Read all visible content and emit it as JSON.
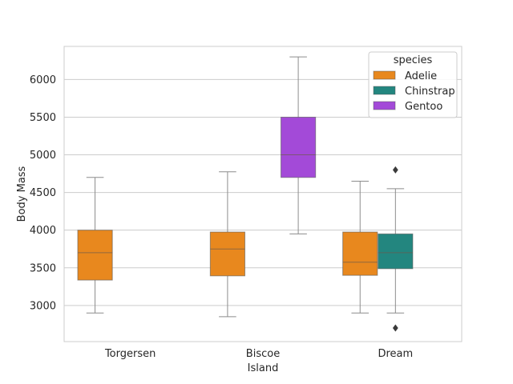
{
  "chart_data": {
    "type": "box",
    "xlabel": "Island",
    "ylabel": "Body Mass",
    "categories": [
      "Torgersen",
      "Biscoe",
      "Dream"
    ],
    "ylim": [
      2520,
      6440
    ],
    "yticks": [
      3000,
      3500,
      4000,
      4500,
      5000,
      5500,
      6000
    ],
    "grid": true,
    "legend": {
      "title": "species",
      "position": "top-right",
      "entries": [
        "Adelie",
        "Chinstrap",
        "Gentoo"
      ]
    },
    "series": [
      {
        "name": "Adelie",
        "color": "#e8881e",
        "boxes": [
          {
            "category": "Torgersen",
            "whisker_low": 2900,
            "q1": 3337,
            "median": 3700,
            "q3": 4000,
            "whisker_high": 4700,
            "outliers": []
          },
          {
            "category": "Biscoe",
            "whisker_low": 2850,
            "q1": 3393,
            "median": 3750,
            "q3": 3975,
            "whisker_high": 4775,
            "outliers": []
          },
          {
            "category": "Dream",
            "whisker_low": 2900,
            "q1": 3400,
            "median": 3575,
            "q3": 3975,
            "whisker_high": 4650,
            "outliers": []
          }
        ]
      },
      {
        "name": "Chinstrap",
        "color": "#23867f",
        "boxes": [
          {
            "category": "Dream",
            "whisker_low": 2900,
            "q1": 3488,
            "median": 3700,
            "q3": 3950,
            "whisker_high": 4550,
            "outliers": [
              2700,
              4800
            ]
          }
        ]
      },
      {
        "name": "Gentoo",
        "color": "#a34ad8",
        "boxes": [
          {
            "category": "Biscoe",
            "whisker_low": 3950,
            "q1": 4700,
            "median": 5000,
            "q3": 5500,
            "whisker_high": 6300,
            "outliers": []
          }
        ]
      }
    ]
  }
}
